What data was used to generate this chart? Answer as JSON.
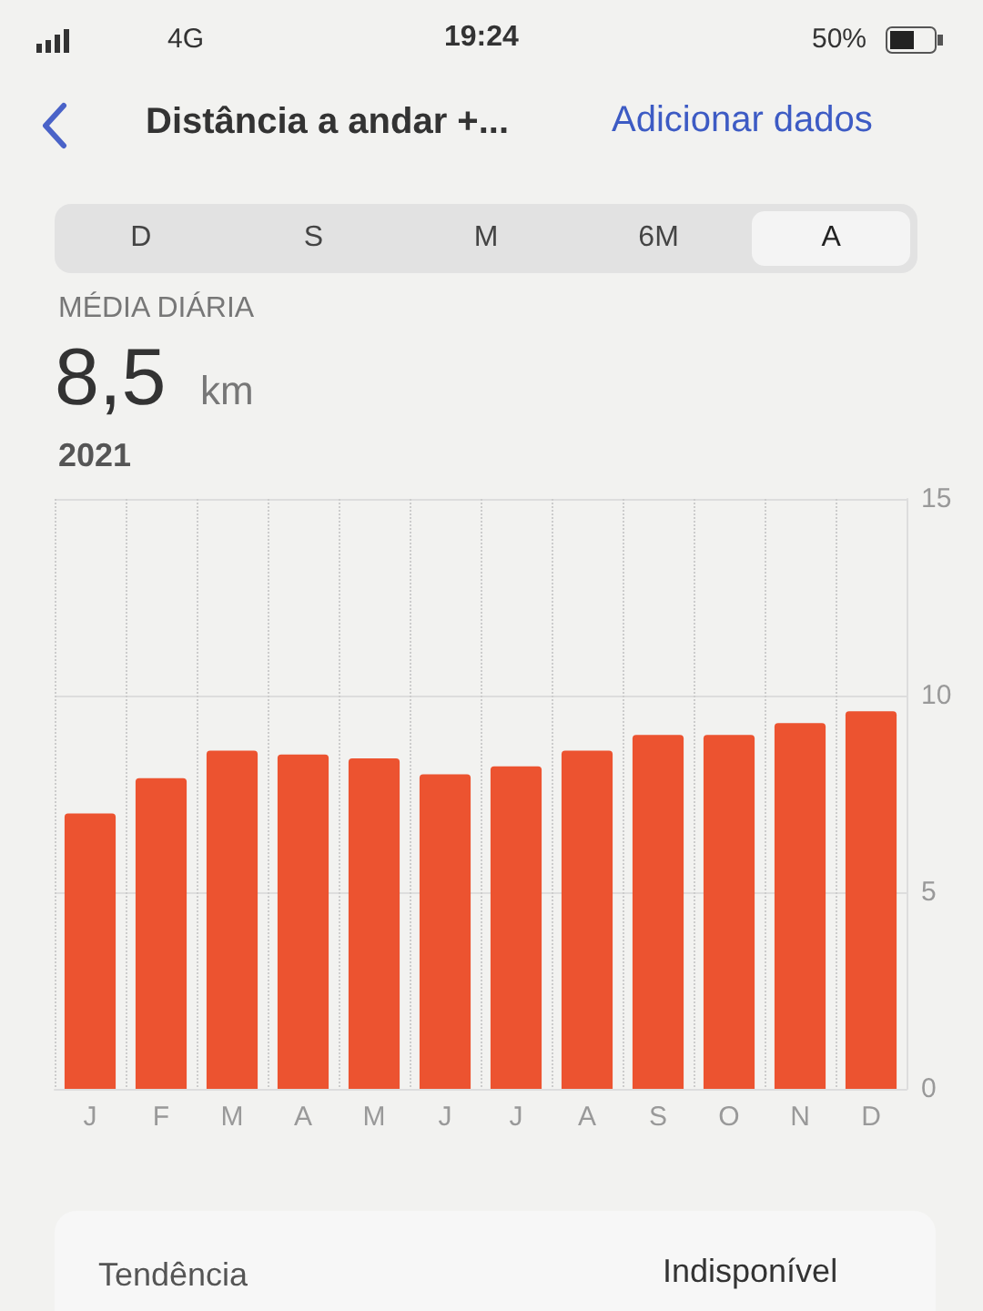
{
  "chart_data": {
    "type": "bar",
    "title": "Distância a andar +...",
    "subtitle": "MÉDIA DIÁRIA",
    "annotations": [
      "19:24",
      "4G",
      "50%",
      "Adicionar dados",
      "D",
      "S",
      "M",
      "6M",
      "A",
      "8,5",
      "km",
      "2021",
      "Tendência",
      "Indisponível"
    ],
    "categories": [
      "J",
      "F",
      "M",
      "A",
      "M",
      "J",
      "J",
      "A",
      "S",
      "O",
      "N",
      "D"
    ],
    "values": [
      7.0,
      7.9,
      8.6,
      8.5,
      8.4,
      8.0,
      8.2,
      8.6,
      9.0,
      9.0,
      9.3,
      9.6
    ],
    "color": "#ec5330",
    "ylim": [
      0,
      15
    ],
    "yticks": [
      0,
      5,
      10,
      15
    ],
    "grid": true
  }
}
